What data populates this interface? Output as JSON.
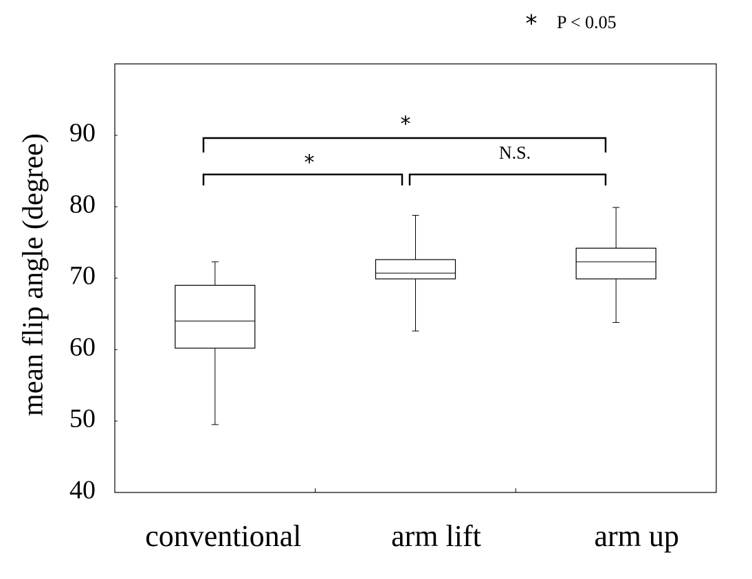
{
  "chart_data": {
    "type": "box",
    "y_label": "mean flip angle (degree)",
    "categories": [
      "conventional",
      "arm lift",
      "arm up"
    ],
    "boxes": [
      {
        "min": 49.5,
        "q1": 60.2,
        "median": 64.0,
        "q3": 69.0,
        "max": 72.3
      },
      {
        "min": 62.6,
        "q1": 69.9,
        "median": 70.7,
        "q3": 72.6,
        "max": 78.8
      },
      {
        "min": 63.8,
        "q1": 69.9,
        "median": 72.3,
        "q3": 74.2,
        "max": 79.9
      }
    ],
    "ylim": [
      40,
      100
    ],
    "yticks": [
      40,
      50,
      60,
      70,
      80,
      90
    ],
    "annotations": [
      "*",
      "*",
      "N.S."
    ],
    "note": {
      "symbol": "*",
      "text": "P < 0.05"
    }
  }
}
